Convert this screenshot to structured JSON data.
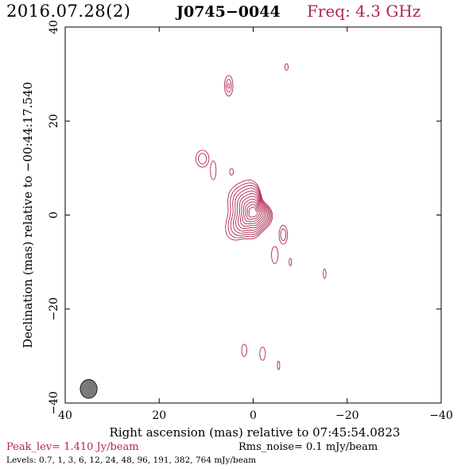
{
  "header": {
    "date": "2016.07.28(2)",
    "source": "J0745−0044",
    "freq": "Freq: 4.3 GHz"
  },
  "colors": {
    "contour": "#b0274f",
    "axes": "#000000",
    "beam_fill": "#7a7a7a"
  },
  "chart_data": {
    "type": "contour",
    "xlabel": "Right ascension (mas) relative to 07:45:54.0823",
    "ylabel": "Declination (mas) relative to −00:44:17.540",
    "xlim": [
      40,
      -40
    ],
    "ylim": [
      -40,
      40
    ],
    "xticks": [
      40,
      20,
      0,
      -20,
      -40
    ],
    "xtick_labels": [
      "40",
      "20",
      "0",
      "−20",
      "−40"
    ],
    "yticks": [
      -40,
      -20,
      0,
      20,
      40
    ],
    "ytick_labels": [
      "−40",
      "−20",
      "0",
      "20",
      "40"
    ],
    "levels_mJy": [
      0.7,
      1,
      3,
      6,
      12,
      24,
      48,
      96,
      191,
      382,
      764
    ],
    "beam": {
      "x": 35,
      "y": -37,
      "major": 4,
      "minor": 1.8,
      "pa": 0
    },
    "core": {
      "x": 0,
      "y": 0.5
    },
    "features": [
      {
        "x": 5.2,
        "y": 27.5,
        "rx": 0.9,
        "ry": 2.2,
        "n": 3
      },
      {
        "x": -7.1,
        "y": 31.5,
        "rx": 0.35,
        "ry": 0.7,
        "n": 1
      },
      {
        "x": 10.8,
        "y": 12.0,
        "rx": 1.4,
        "ry": 1.8,
        "n": 2
      },
      {
        "x": 8.5,
        "y": 9.5,
        "rx": 0.6,
        "ry": 2.0,
        "n": 1
      },
      {
        "x": 4.6,
        "y": 9.2,
        "rx": 0.4,
        "ry": 0.7,
        "n": 1
      },
      {
        "x": -6.4,
        "y": -4.2,
        "rx": 0.9,
        "ry": 2.0,
        "n": 2
      },
      {
        "x": -4.6,
        "y": -8.5,
        "rx": 0.7,
        "ry": 1.8,
        "n": 1
      },
      {
        "x": -7.9,
        "y": -10.0,
        "rx": 0.25,
        "ry": 0.8,
        "n": 1
      },
      {
        "x": -15.2,
        "y": -12.5,
        "rx": 0.3,
        "ry": 1.0,
        "n": 1
      },
      {
        "x": 1.9,
        "y": -28.8,
        "rx": 0.55,
        "ry": 1.3,
        "n": 1
      },
      {
        "x": -2.0,
        "y": -29.5,
        "rx": 0.6,
        "ry": 1.4,
        "n": 1
      },
      {
        "x": -5.4,
        "y": -32.0,
        "rx": 0.25,
        "ry": 0.9,
        "n": 1
      }
    ]
  },
  "footer": {
    "peak": "Peak_lev=  1.410 Jy/beam",
    "rms": "Rms_noise=  0.1 mJy/beam",
    "levels": "Levels: 0.7,   1,   3,   6,  12,  24,  48,  96, 191, 382, 764 mJy/beam"
  }
}
